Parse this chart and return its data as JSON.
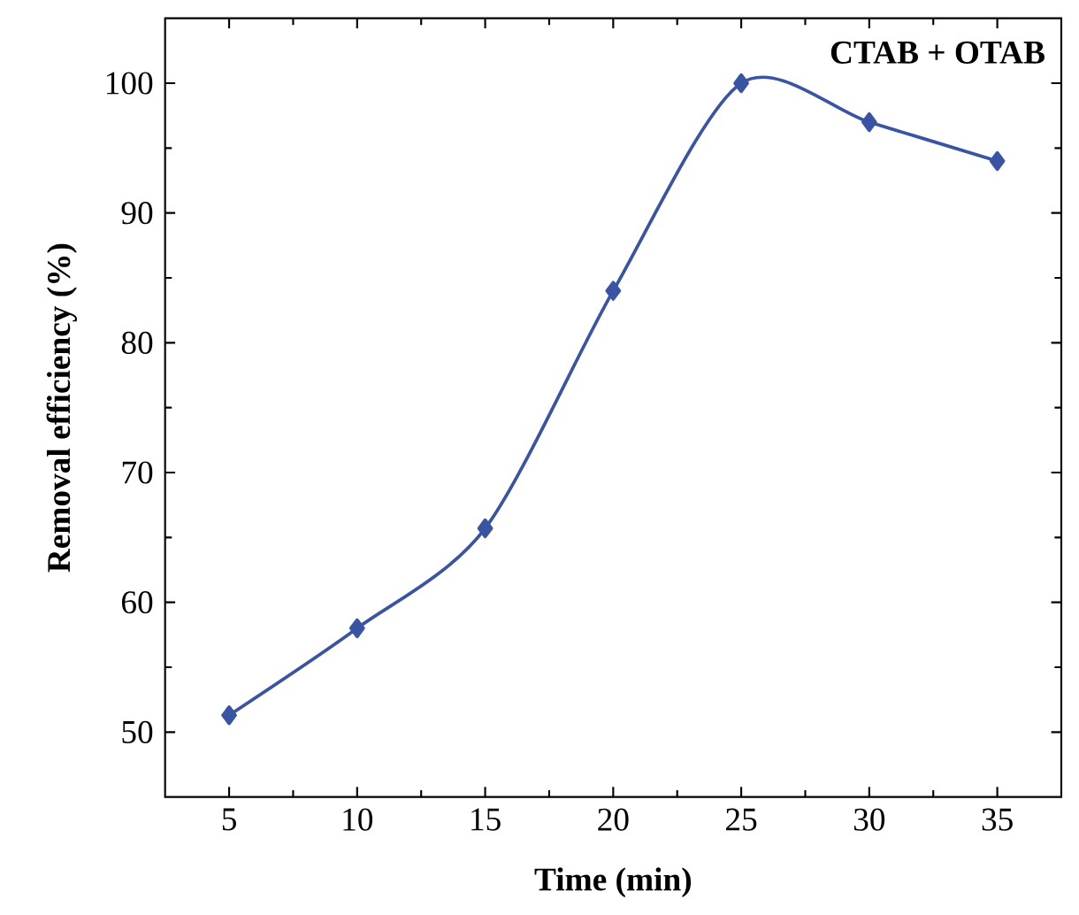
{
  "chart_data": {
    "type": "line",
    "xlabel": "Time (min)",
    "ylabel": "Removal efficiency (%)",
    "annotations": [
      "CTAB + OTAB"
    ],
    "x": [
      5,
      10,
      15,
      20,
      25,
      30,
      35
    ],
    "series": [
      {
        "color": "#3a54a4",
        "values": [
          51.3,
          58,
          65.7,
          84,
          100,
          97,
          94
        ]
      }
    ],
    "xlim": [
      2.5,
      37.5
    ],
    "ylim": [
      45,
      105
    ],
    "xticks": [
      5,
      10,
      15,
      20,
      25,
      30,
      35
    ],
    "yticks": [
      50,
      60,
      70,
      80,
      90,
      100
    ],
    "marker": "diamond",
    "line_style": "solid",
    "grid": false
  }
}
